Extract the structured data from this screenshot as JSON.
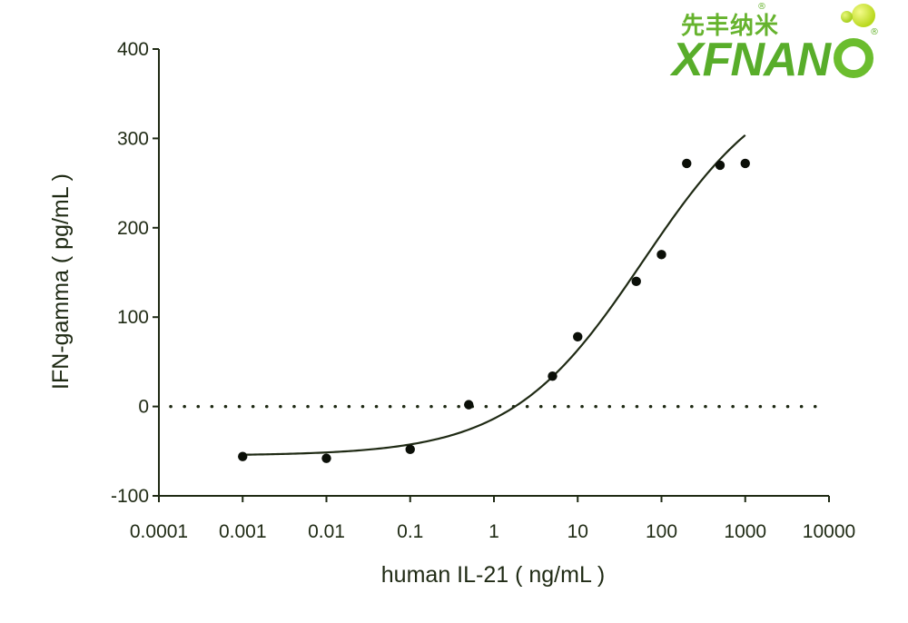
{
  "logo": {
    "cn_text": "先丰纳米",
    "en_text": "XFNAN",
    "registered_mark": "®"
  },
  "chart_data": {
    "type": "scatter",
    "title": "",
    "xlabel": "human IL-21 ( ng/mL )",
    "ylabel": "IFN-gamma ( pg/mL )",
    "x_scale": "log",
    "xlim": [
      0.0001,
      10000
    ],
    "ylim": [
      -100,
      400
    ],
    "x_ticks": [
      0.0001,
      0.001,
      0.01,
      0.1,
      1,
      10,
      100,
      1000,
      10000
    ],
    "x_tick_labels": [
      "0.0001",
      "0.001",
      "0.01",
      "0.1",
      "1",
      "10",
      "100",
      "1000",
      "10000"
    ],
    "y_ticks": [
      -100,
      0,
      100,
      200,
      300,
      400
    ],
    "y_tick_labels": [
      "-100",
      "0",
      "100",
      "200",
      "300",
      "400"
    ],
    "reference_line": {
      "y": 0,
      "style": "dotted"
    },
    "grid": false,
    "series": [
      {
        "points": [
          {
            "x": 0.001,
            "y": -56
          },
          {
            "x": 0.01,
            "y": -58
          },
          {
            "x": 0.1,
            "y": -48
          },
          {
            "x": 0.5,
            "y": 2
          },
          {
            "x": 5,
            "y": 34
          },
          {
            "x": 10,
            "y": 78
          },
          {
            "x": 50,
            "y": 140
          },
          {
            "x": 100,
            "y": 170
          },
          {
            "x": 200,
            "y": 272
          },
          {
            "x": 500,
            "y": 270
          },
          {
            "x": 1000,
            "y": 272
          }
        ],
        "fit": {
          "model": "four-parameter logistic",
          "bottom": -55,
          "top": 380,
          "ec50": 60,
          "hill": 0.55,
          "x_range": [
            0.001,
            1000
          ]
        }
      }
    ]
  }
}
